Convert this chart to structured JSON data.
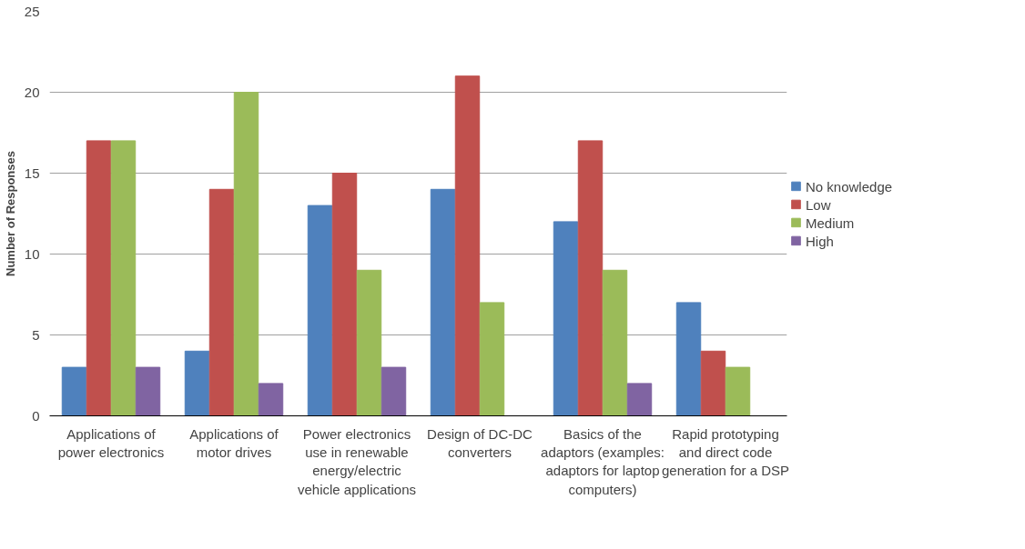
{
  "chart_data": {
    "type": "bar",
    "ylabel": "Number of Responses",
    "categories": [
      "Applications of power electronics",
      "Applications of motor drives",
      "Power electronics use in renewable energy/electric vehicle applications",
      "Design of DC-DC converters",
      "Basics of the adaptors (examples: adaptors for laptop computers)",
      "Rapid prototyping and direct code generation for a DSP"
    ],
    "series": [
      {
        "name": "No knowledge",
        "color": "#4f81bd",
        "values": [
          3,
          4,
          13,
          14,
          12,
          7
        ]
      },
      {
        "name": "Low",
        "color": "#c0504d",
        "values": [
          17,
          14,
          15,
          21,
          17,
          4
        ]
      },
      {
        "name": "Medium",
        "color": "#9bbb59",
        "values": [
          17,
          20,
          9,
          7,
          9,
          3
        ]
      },
      {
        "name": "High",
        "color": "#8064a2",
        "values": [
          3,
          2,
          3,
          0,
          2,
          0
        ]
      }
    ],
    "ylim": [
      0,
      25
    ],
    "yticks": [
      0,
      5,
      10,
      15,
      20,
      25
    ],
    "grid": "y",
    "legend": "right"
  }
}
